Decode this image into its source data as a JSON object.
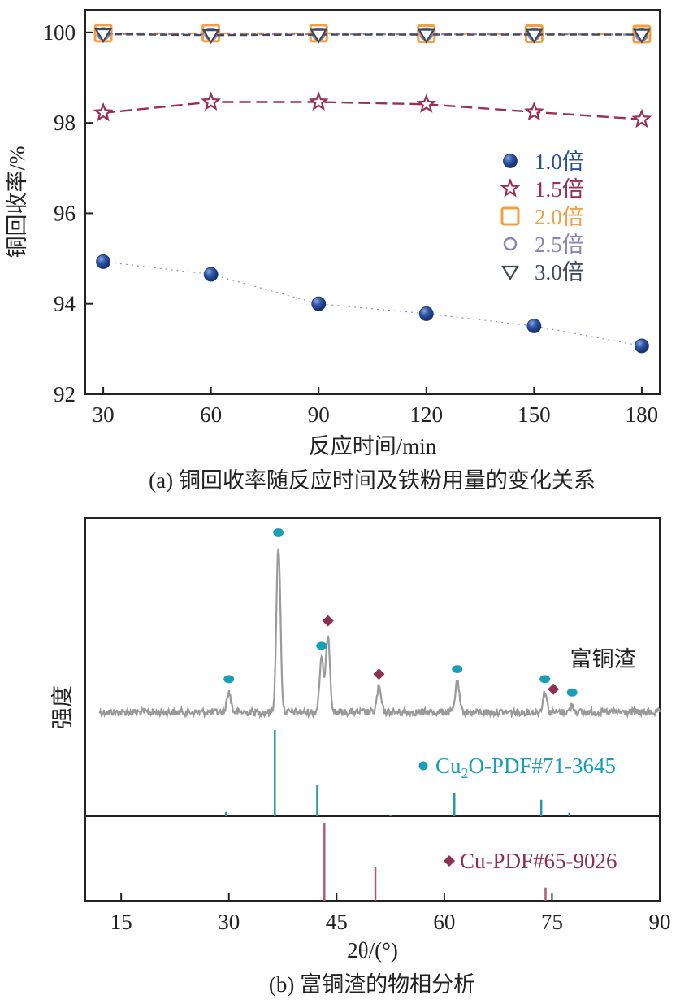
{
  "chart_data": [
    {
      "type": "line",
      "caption": "(a) 铜回收率随反应时间及铁粉用量的变化关系",
      "xlabel": "反应时间/min",
      "ylabel": "铜回收率/%",
      "x": [
        30,
        60,
        90,
        120,
        150,
        180
      ],
      "xticks": [
        "30",
        "60",
        "90",
        "120",
        "150",
        "180"
      ],
      "yticks": [
        "92",
        "94",
        "96",
        "98",
        "100"
      ],
      "xlim": [
        25,
        185
      ],
      "ylim": [
        92,
        100.5
      ],
      "legend_position": "right",
      "series": [
        {
          "name": "1.0倍",
          "color": "#2b4f9e",
          "marker": "sphere",
          "values": [
            94.93,
            94.65,
            94.0,
            93.78,
            93.51,
            93.07
          ]
        },
        {
          "name": "1.5倍",
          "color": "#9b2f53",
          "marker": "star",
          "values": [
            98.22,
            98.46,
            98.46,
            98.41,
            98.24,
            98.08
          ]
        },
        {
          "name": "2.0倍",
          "color": "#f0a040",
          "marker": "square",
          "values": [
            99.98,
            99.98,
            99.98,
            99.97,
            99.97,
            99.96
          ]
        },
        {
          "name": "2.5倍",
          "color": "#8b83b8",
          "marker": "circle",
          "values": [
            99.97,
            99.96,
            99.96,
            99.96,
            99.96,
            99.95
          ]
        },
        {
          "name": "3.0倍",
          "color": "#3f4a5e",
          "marker": "triangle-down",
          "values": [
            99.96,
            99.94,
            99.95,
            99.95,
            99.95,
            99.95
          ]
        }
      ]
    },
    {
      "type": "line",
      "caption": "(b) 富铜渣的物相分析",
      "xlabel": "2θ/(°)",
      "ylabel": "强度",
      "xticks": [
        "15",
        "30",
        "45",
        "60",
        "75",
        "90"
      ],
      "xlim": [
        10,
        90
      ],
      "series_label": "富铜渣",
      "pattern_peaks": [
        {
          "x": 30.0,
          "h": 0.12
        },
        {
          "x": 36.9,
          "h": 1.0
        },
        {
          "x": 42.9,
          "h": 0.32
        },
        {
          "x": 43.8,
          "h": 0.47
        },
        {
          "x": 50.9,
          "h": 0.15
        },
        {
          "x": 61.8,
          "h": 0.18
        },
        {
          "x": 74.0,
          "h": 0.12
        },
        {
          "x": 77.8,
          "h": 0.04
        }
      ],
      "markers": [
        {
          "x": 30.0,
          "phase": "Cu2O"
        },
        {
          "x": 36.9,
          "phase": "Cu2O"
        },
        {
          "x": 42.9,
          "phase": "Cu2O"
        },
        {
          "x": 43.8,
          "phase": "Cu"
        },
        {
          "x": 50.9,
          "phase": "Cu"
        },
        {
          "x": 61.8,
          "phase": "Cu2O"
        },
        {
          "x": 74.0,
          "phase": "Cu2O"
        },
        {
          "x": 75.2,
          "phase": "Cu"
        },
        {
          "x": 77.8,
          "phase": "Cu2O"
        }
      ],
      "references": [
        {
          "name_prefix": "Cu",
          "name_sub": "2",
          "name_suffix": "O-PDF#71-3645",
          "color": "#1a9eb8",
          "line_color": "#2a98a8",
          "lines": [
            {
              "x": 29.6,
              "h": 0.05
            },
            {
              "x": 36.4,
              "h": 1.0
            },
            {
              "x": 42.3,
              "h": 0.36
            },
            {
              "x": 52.5,
              "h": 0.01
            },
            {
              "x": 61.4,
              "h": 0.27
            },
            {
              "x": 73.5,
              "h": 0.19
            },
            {
              "x": 77.4,
              "h": 0.04
            }
          ]
        },
        {
          "name": "Cu-PDF#65-9026",
          "color": "#8f2f52",
          "line_color": "#a8607a",
          "lines": [
            {
              "x": 43.3,
              "h": 1.0
            },
            {
              "x": 50.4,
              "h": 0.43
            },
            {
              "x": 74.1,
              "h": 0.17
            }
          ]
        }
      ]
    }
  ]
}
